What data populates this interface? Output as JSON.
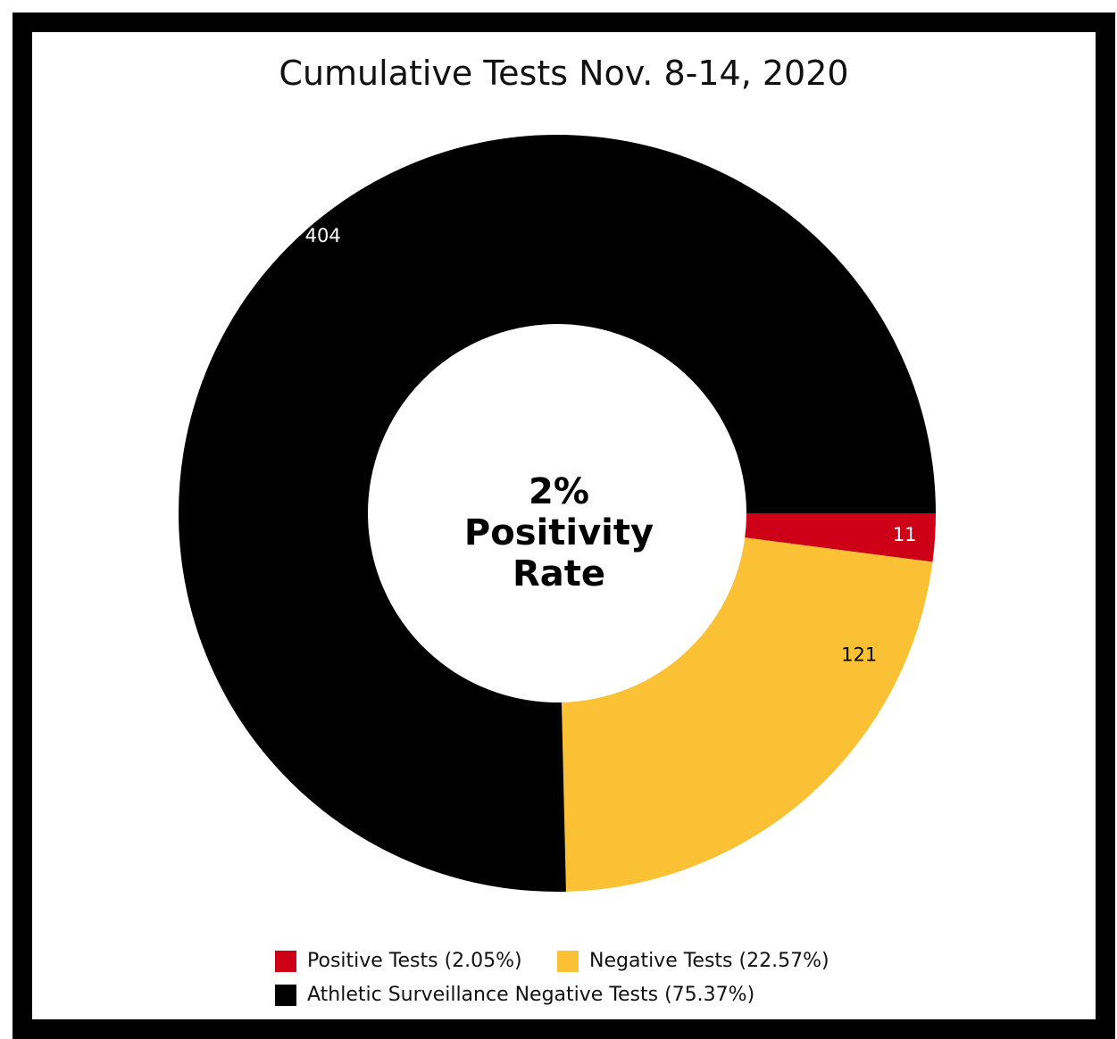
{
  "chart_data": {
    "type": "pie",
    "title": "Cumulative Tests Nov. 8-14, 2020",
    "donut": true,
    "center_text": [
      "2%",
      "Positivity",
      "Rate"
    ],
    "slices": [
      {
        "name": "Positive Tests (2.05%)",
        "value": 11,
        "label": "11",
        "color": "#CE0018",
        "label_color": "#ffffff"
      },
      {
        "name": "Negative Tests (22.57%)",
        "value": 121,
        "label": "121",
        "color": "#F9C133",
        "label_color": "#000000"
      },
      {
        "name": "Athletic Surveillance Negative Tests (75.37%)",
        "value": 404,
        "label": "404",
        "color": "#000000",
        "label_color": "#ffffff"
      }
    ],
    "legend_position": "bottom"
  },
  "colors": {
    "frame": "#000000",
    "background": "#ffffff"
  }
}
